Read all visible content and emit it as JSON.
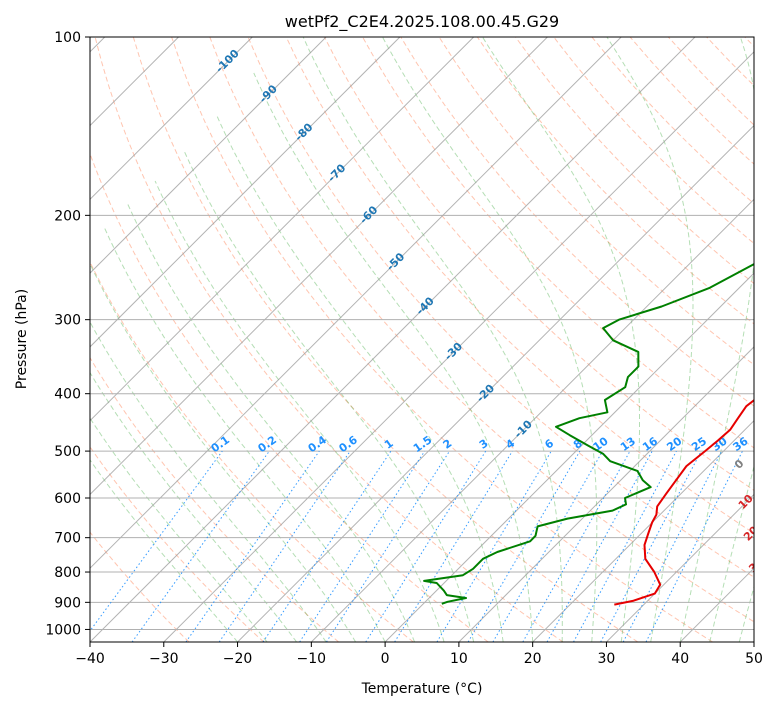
{
  "chart_data": {
    "type": "line",
    "title": "wetPf2_C2E4.2025.108.00.45.G29",
    "xlabel": "Temperature (°C)",
    "ylabel": "Pressure (hPa)",
    "xlim": [
      -40,
      50
    ],
    "ylim": [
      1050,
      100
    ],
    "y_scale": "log",
    "grid": true,
    "x_ticks": [
      "−40",
      "−30",
      "−20",
      "−10",
      "0",
      "10",
      "20",
      "30",
      "40",
      "50"
    ],
    "y_ticks": [
      "100",
      "200",
      "300",
      "400",
      "500",
      "600",
      "700",
      "800",
      "900",
      "1000"
    ],
    "series": [
      {
        "color": "#e60000",
        "points": [
          [
            26,
            908
          ],
          [
            28,
            895
          ],
          [
            30,
            870
          ],
          [
            29.5,
            840
          ],
          [
            27,
            800
          ],
          [
            24,
            760
          ],
          [
            22,
            720
          ],
          [
            21,
            690
          ],
          [
            20,
            660
          ],
          [
            19.5,
            640
          ],
          [
            18.5,
            620
          ],
          [
            18,
            590
          ],
          [
            17.5,
            560
          ],
          [
            17,
            530
          ],
          [
            17.5,
            500
          ],
          [
            17.8,
            480
          ],
          [
            18,
            460
          ],
          [
            17.5,
            440
          ],
          [
            17,
            420
          ],
          [
            17.5,
            400
          ],
          [
            17,
            380
          ],
          [
            16,
            360
          ],
          [
            14,
            345
          ],
          [
            13,
            330
          ],
          [
            13,
            310
          ],
          [
            12.5,
            295
          ],
          [
            11,
            280
          ],
          [
            9,
            260
          ],
          [
            7,
            240
          ],
          [
            5,
            222
          ],
          [
            4,
            210
          ],
          [
            3.5,
            195
          ],
          [
            3,
            180
          ],
          [
            3,
            170
          ],
          [
            2.5,
            158
          ],
          [
            3,
            145
          ],
          [
            2.5,
            135
          ],
          [
            1,
            125
          ],
          [
            0.5,
            118
          ],
          [
            1,
            110
          ],
          [
            2,
            102
          ],
          [
            2.5,
            100
          ]
        ]
      },
      {
        "color": "#008000",
        "points": [
          [
            2.5,
            905
          ],
          [
            3,
            898
          ],
          [
            5,
            885
          ],
          [
            2,
            875
          ],
          [
            1,
            860
          ],
          [
            -1,
            835
          ],
          [
            -3,
            828
          ],
          [
            1.5,
            810
          ],
          [
            2,
            790
          ],
          [
            2,
            760
          ],
          [
            3,
            740
          ],
          [
            6,
            710
          ],
          [
            6,
            695
          ],
          [
            5,
            670
          ],
          [
            8,
            650
          ],
          [
            13,
            630
          ],
          [
            14,
            615
          ],
          [
            13,
            600
          ],
          [
            15,
            575
          ],
          [
            13,
            560
          ],
          [
            11,
            540
          ],
          [
            6,
            520
          ],
          [
            4,
            505
          ],
          [
            1,
            490
          ],
          [
            -3,
            470
          ],
          [
            -6,
            455
          ],
          [
            -4,
            440
          ],
          [
            -1,
            430
          ],
          [
            -3,
            410
          ],
          [
            -2,
            390
          ],
          [
            -3,
            375
          ],
          [
            -3,
            360
          ],
          [
            -5,
            340
          ],
          [
            -10,
            325
          ],
          [
            -13,
            310
          ],
          [
            -12,
            300
          ],
          [
            -8,
            285
          ],
          [
            -4,
            265
          ],
          [
            -1,
            240
          ],
          [
            0,
            225
          ],
          [
            -3,
            210
          ],
          [
            -6,
            190
          ],
          [
            -7,
            172
          ],
          [
            -6,
            155
          ],
          [
            -4,
            140
          ],
          [
            -1,
            126
          ],
          [
            0,
            118
          ],
          [
            1,
            108
          ],
          [
            2.5,
            100
          ]
        ]
      }
    ],
    "mixing_ratio_labels": [
      "0.1",
      "0.2",
      "0.4",
      "0.6",
      "1",
      "1.5",
      "2",
      "3",
      "4",
      "6",
      "8",
      "10",
      "13",
      "16",
      "20",
      "25",
      "30",
      "36"
    ],
    "isotherm_labels": [
      "-100",
      "-90",
      "-80",
      "-70",
      "-60",
      "-50",
      "-40",
      "-30",
      "-20",
      "-10"
    ],
    "moist_adiabat_labels": [
      "0",
      "10",
      "20",
      "30",
      "40"
    ],
    "colors": {
      "temperature": "#e60000",
      "dewpoint": "#008000",
      "isotherm_label": "#1f77b4",
      "mixing_ratio_label": "#1e90ff",
      "moist_adiabat_label": "#d62728",
      "moist_zero_label": "#808080",
      "dry_adiabat": "#ff7f50",
      "moist_adiabat": "#2ca02c",
      "mixing_ratio_line": "#1e90ff",
      "grid": "#b0b0b0"
    }
  }
}
